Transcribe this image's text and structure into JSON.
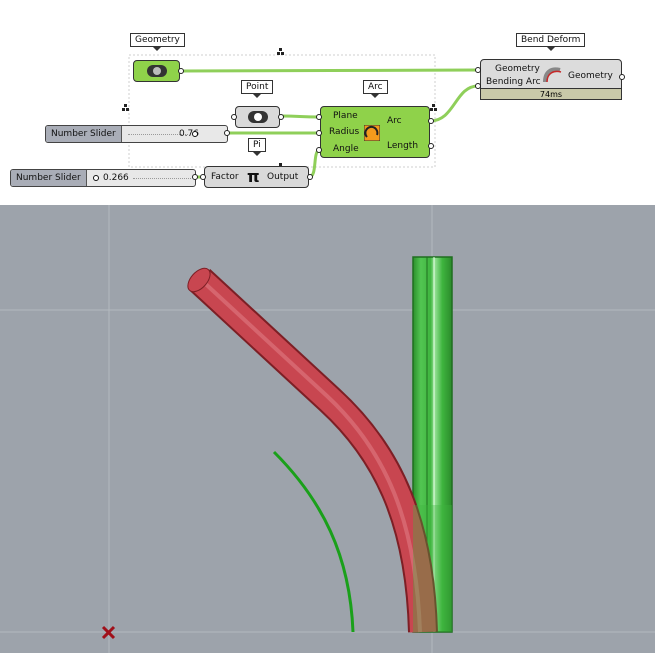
{
  "canvas": {
    "geometry_param": {
      "tag": "Geometry",
      "icon": "geometry-icon"
    },
    "point_param": {
      "tag": "Point",
      "icon": "point-icon"
    },
    "arc_component": {
      "tag": "Arc",
      "inputs": [
        "Plane",
        "Radius",
        "Angle"
      ],
      "outputs": [
        "Arc",
        "Length"
      ],
      "icon": "arc-icon"
    },
    "pi_component": {
      "tag": "Pi",
      "input": "Factor",
      "symbol": "π",
      "output": "Output"
    },
    "bend_component": {
      "tag": "Bend Deform",
      "inputs": [
        "Geometry",
        "Bending Arc"
      ],
      "output": "Geometry",
      "timing": "74ms",
      "icon": "bend-icon"
    },
    "slider_radius": {
      "name": "Number Slider",
      "value": "0.76"
    },
    "slider_factor": {
      "name": "Number Slider",
      "value": "0.266"
    }
  },
  "colors": {
    "wire": "#8fcf5a",
    "param_green": "#8fd24a",
    "viewport_bg": "#9da3ab",
    "bent_tube": "#c84650",
    "straight_tube": "#3fbf3f",
    "arc_curve": "#1aa01a",
    "origin_mark": "#a0101a"
  }
}
